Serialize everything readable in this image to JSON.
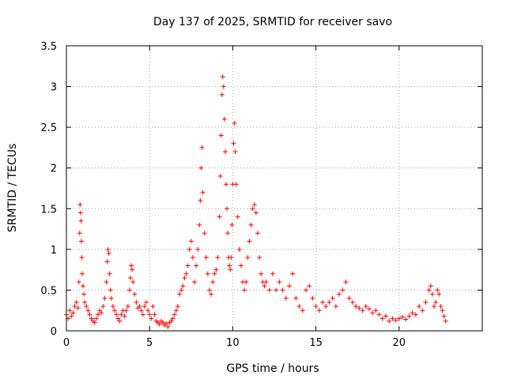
{
  "chart_data": {
    "type": "scatter",
    "title": "Day 137 of 2025, SRMTID for receiver savo",
    "xlabel": "GPS time / hours",
    "ylabel": "SRMTID / TECUs",
    "xlim": [
      0,
      25
    ],
    "ylim": [
      0,
      3.5
    ],
    "xticks": [
      0,
      5,
      10,
      15,
      20
    ],
    "xtick_labels": [
      "0",
      "5",
      "10",
      "15",
      "20"
    ],
    "yticks": [
      0,
      0.5,
      1,
      1.5,
      2,
      2.5,
      3,
      3.5
    ],
    "ytick_labels": [
      "0",
      "0.5",
      "1",
      "1.5",
      "2",
      "2.5",
      "3",
      "3.5"
    ],
    "grid": true,
    "marker": "+",
    "color": "#ff0000",
    "series": [
      {
        "name": "SRMTID",
        "points": [
          [
            0.0,
            0.2
          ],
          [
            0.1,
            0.15
          ],
          [
            0.2,
            0.25
          ],
          [
            0.3,
            0.18
          ],
          [
            0.4,
            0.22
          ],
          [
            0.5,
            0.3
          ],
          [
            0.6,
            0.35
          ],
          [
            0.7,
            0.28
          ],
          [
            0.75,
            0.6
          ],
          [
            0.8,
            1.2
          ],
          [
            0.82,
            1.55
          ],
          [
            0.85,
            1.45
          ],
          [
            0.88,
            1.35
          ],
          [
            0.9,
            1.1
          ],
          [
            0.93,
            0.9
          ],
          [
            0.95,
            0.7
          ],
          [
            1.0,
            0.55
          ],
          [
            1.05,
            0.45
          ],
          [
            1.1,
            0.35
          ],
          [
            1.2,
            0.3
          ],
          [
            1.3,
            0.25
          ],
          [
            1.4,
            0.2
          ],
          [
            1.5,
            0.15
          ],
          [
            1.6,
            0.12
          ],
          [
            1.7,
            0.1
          ],
          [
            1.8,
            0.15
          ],
          [
            1.9,
            0.2
          ],
          [
            2.0,
            0.25
          ],
          [
            2.1,
            0.22
          ],
          [
            2.2,
            0.3
          ],
          [
            2.3,
            0.4
          ],
          [
            2.4,
            0.6
          ],
          [
            2.45,
            0.85
          ],
          [
            2.5,
            1.0
          ],
          [
            2.55,
            0.95
          ],
          [
            2.6,
            0.7
          ],
          [
            2.65,
            0.5
          ],
          [
            2.7,
            0.4
          ],
          [
            2.8,
            0.3
          ],
          [
            2.9,
            0.25
          ],
          [
            3.0,
            0.2
          ],
          [
            3.1,
            0.15
          ],
          [
            3.2,
            0.12
          ],
          [
            3.3,
            0.2
          ],
          [
            3.4,
            0.25
          ],
          [
            3.5,
            0.18
          ],
          [
            3.6,
            0.25
          ],
          [
            3.7,
            0.3
          ],
          [
            3.8,
            0.5
          ],
          [
            3.85,
            0.65
          ],
          [
            3.9,
            0.8
          ],
          [
            3.95,
            0.75
          ],
          [
            4.0,
            0.6
          ],
          [
            4.1,
            0.45
          ],
          [
            4.2,
            0.35
          ],
          [
            4.3,
            0.28
          ],
          [
            4.4,
            0.3
          ],
          [
            4.5,
            0.25
          ],
          [
            4.6,
            0.2
          ],
          [
            4.7,
            0.3
          ],
          [
            4.8,
            0.35
          ],
          [
            4.9,
            0.25
          ],
          [
            5.0,
            0.2
          ],
          [
            5.1,
            0.15
          ],
          [
            5.2,
            0.3
          ],
          [
            5.3,
            0.2
          ],
          [
            5.4,
            0.12
          ],
          [
            5.5,
            0.1
          ],
          [
            5.6,
            0.08
          ],
          [
            5.7,
            0.12
          ],
          [
            5.8,
            0.1
          ],
          [
            5.9,
            0.07
          ],
          [
            6.0,
            0.09
          ],
          [
            6.1,
            0.05
          ],
          [
            6.2,
            0.1
          ],
          [
            6.3,
            0.12
          ],
          [
            6.4,
            0.15
          ],
          [
            6.5,
            0.2
          ],
          [
            6.6,
            0.25
          ],
          [
            6.7,
            0.3
          ],
          [
            6.8,
            0.45
          ],
          [
            6.9,
            0.5
          ],
          [
            7.0,
            0.55
          ],
          [
            7.1,
            0.65
          ],
          [
            7.2,
            0.7
          ],
          [
            7.3,
            0.8
          ],
          [
            7.4,
            1.0
          ],
          [
            7.5,
            1.1
          ],
          [
            7.6,
            0.9
          ],
          [
            7.7,
            0.6
          ],
          [
            7.8,
            0.8
          ],
          [
            7.9,
            1.0
          ],
          [
            8.0,
            1.3
          ],
          [
            8.05,
            1.6
          ],
          [
            8.1,
            2.0
          ],
          [
            8.15,
            2.25
          ],
          [
            8.2,
            1.7
          ],
          [
            8.3,
            1.2
          ],
          [
            8.4,
            0.9
          ],
          [
            8.5,
            0.7
          ],
          [
            8.6,
            0.5
          ],
          [
            8.7,
            0.45
          ],
          [
            8.8,
            0.6
          ],
          [
            8.9,
            0.7
          ],
          [
            9.0,
            0.75
          ],
          [
            9.1,
            0.9
          ],
          [
            9.2,
            1.4
          ],
          [
            9.25,
            1.9
          ],
          [
            9.3,
            2.4
          ],
          [
            9.35,
            2.9
          ],
          [
            9.4,
            3.12
          ],
          [
            9.45,
            3.0
          ],
          [
            9.5,
            2.6
          ],
          [
            9.55,
            2.2
          ],
          [
            9.6,
            1.8
          ],
          [
            9.65,
            1.5
          ],
          [
            9.7,
            1.2
          ],
          [
            9.75,
            0.9
          ],
          [
            9.8,
            0.8
          ],
          [
            9.85,
            0.75
          ],
          [
            9.9,
            0.9
          ],
          [
            9.95,
            1.3
          ],
          [
            10.0,
            1.8
          ],
          [
            10.05,
            2.3
          ],
          [
            10.1,
            2.55
          ],
          [
            10.15,
            2.2
          ],
          [
            10.2,
            1.8
          ],
          [
            10.3,
            1.4
          ],
          [
            10.4,
            1.0
          ],
          [
            10.5,
            0.8
          ],
          [
            10.6,
            0.6
          ],
          [
            10.7,
            0.5
          ],
          [
            10.8,
            0.6
          ],
          [
            10.9,
            0.9
          ],
          [
            11.0,
            1.1
          ],
          [
            11.1,
            1.3
          ],
          [
            11.2,
            1.5
          ],
          [
            11.3,
            1.55
          ],
          [
            11.4,
            1.45
          ],
          [
            11.5,
            1.2
          ],
          [
            11.6,
            0.9
          ],
          [
            11.7,
            0.7
          ],
          [
            11.8,
            0.6
          ],
          [
            11.9,
            0.55
          ],
          [
            12.0,
            0.6
          ],
          [
            12.2,
            0.5
          ],
          [
            12.4,
            0.7
          ],
          [
            12.6,
            0.5
          ],
          [
            12.8,
            0.6
          ],
          [
            13.0,
            0.5
          ],
          [
            13.2,
            0.4
          ],
          [
            13.4,
            0.55
          ],
          [
            13.6,
            0.7
          ],
          [
            13.8,
            0.4
          ],
          [
            14.0,
            0.3
          ],
          [
            14.2,
            0.25
          ],
          [
            14.4,
            0.5
          ],
          [
            14.6,
            0.55
          ],
          [
            14.8,
            0.4
          ],
          [
            15.0,
            0.3
          ],
          [
            15.2,
            0.25
          ],
          [
            15.4,
            0.35
          ],
          [
            15.6,
            0.3
          ],
          [
            15.8,
            0.35
          ],
          [
            16.0,
            0.4
          ],
          [
            16.2,
            0.3
          ],
          [
            16.4,
            0.45
          ],
          [
            16.6,
            0.5
          ],
          [
            16.8,
            0.6
          ],
          [
            17.0,
            0.4
          ],
          [
            17.2,
            0.35
          ],
          [
            17.4,
            0.3
          ],
          [
            17.6,
            0.28
          ],
          [
            17.8,
            0.25
          ],
          [
            18.0,
            0.3
          ],
          [
            18.2,
            0.27
          ],
          [
            18.4,
            0.22
          ],
          [
            18.6,
            0.25
          ],
          [
            18.8,
            0.2
          ],
          [
            19.0,
            0.15
          ],
          [
            19.2,
            0.18
          ],
          [
            19.4,
            0.12
          ],
          [
            19.6,
            0.15
          ],
          [
            19.8,
            0.13
          ],
          [
            20.0,
            0.15
          ],
          [
            20.2,
            0.17
          ],
          [
            20.4,
            0.14
          ],
          [
            20.6,
            0.18
          ],
          [
            20.8,
            0.22
          ],
          [
            21.0,
            0.2
          ],
          [
            21.2,
            0.3
          ],
          [
            21.4,
            0.25
          ],
          [
            21.6,
            0.35
          ],
          [
            21.8,
            0.5
          ],
          [
            21.9,
            0.55
          ],
          [
            22.0,
            0.45
          ],
          [
            22.1,
            0.3
          ],
          [
            22.2,
            0.35
          ],
          [
            22.3,
            0.5
          ],
          [
            22.4,
            0.45
          ],
          [
            22.5,
            0.3
          ],
          [
            22.6,
            0.25
          ],
          [
            22.7,
            0.18
          ],
          [
            22.8,
            0.12
          ]
        ]
      }
    ]
  }
}
